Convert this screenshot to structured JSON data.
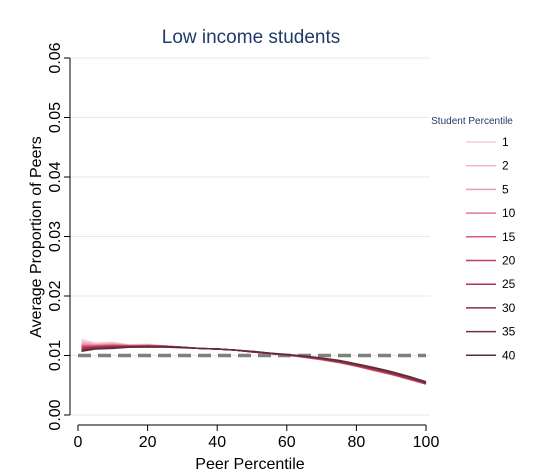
{
  "chart_data": {
    "type": "line",
    "title": "Low income students",
    "xlabel": "Peer Percentile",
    "ylabel": "Average Proportion of Peers",
    "xlim": [
      0,
      100
    ],
    "ylim": [
      0,
      0.06
    ],
    "x_ticks": [
      "0",
      "20",
      "40",
      "60",
      "80",
      "100"
    ],
    "y_ticks": [
      "0.00",
      "0.01",
      "0.02",
      "0.03",
      "0.04",
      "0.05",
      "0.06"
    ],
    "grid": true,
    "legend_title": "Student Percentile",
    "legend_position": "right",
    "reference_line": {
      "y": 0.01,
      "style": "dashed",
      "color": "#7f7f7f"
    },
    "x": [
      1,
      5,
      10,
      15,
      20,
      25,
      30,
      35,
      40,
      45,
      50,
      55,
      60,
      65,
      70,
      75,
      80,
      85,
      90,
      95,
      100
    ],
    "series": [
      {
        "name": "1",
        "color": "#f5cfd6",
        "values": [
          0.0127,
          0.0121,
          0.0122,
          0.0118,
          0.0119,
          0.0116,
          0.0114,
          0.0112,
          0.0111,
          0.0109,
          0.0106,
          0.0103,
          0.0101,
          0.0097,
          0.0093,
          0.0089,
          0.0083,
          0.0077,
          0.0071,
          0.0064,
          0.0056
        ]
      },
      {
        "name": "2",
        "color": "#f1b8c5",
        "values": [
          0.0124,
          0.0119,
          0.0121,
          0.0117,
          0.0118,
          0.0116,
          0.0114,
          0.0112,
          0.0111,
          0.0109,
          0.0106,
          0.0103,
          0.0101,
          0.0097,
          0.0093,
          0.0089,
          0.0083,
          0.0076,
          0.007,
          0.0063,
          0.0055
        ]
      },
      {
        "name": "5",
        "color": "#ec9db1",
        "values": [
          0.0121,
          0.0118,
          0.0119,
          0.0117,
          0.0117,
          0.0116,
          0.0114,
          0.0112,
          0.0111,
          0.0109,
          0.0106,
          0.0103,
          0.0101,
          0.0097,
          0.0093,
          0.0088,
          0.0083,
          0.0076,
          0.0069,
          0.0062,
          0.0054
        ]
      },
      {
        "name": "10",
        "color": "#e07a93",
        "values": [
          0.0118,
          0.0117,
          0.0118,
          0.0117,
          0.0117,
          0.0116,
          0.0114,
          0.0112,
          0.0111,
          0.0109,
          0.0106,
          0.0103,
          0.0101,
          0.0097,
          0.0093,
          0.0088,
          0.0082,
          0.0075,
          0.0068,
          0.0061,
          0.0053
        ]
      },
      {
        "name": "15",
        "color": "#d55a78",
        "values": [
          0.0116,
          0.0116,
          0.0117,
          0.0116,
          0.0117,
          0.0116,
          0.0114,
          0.0112,
          0.0111,
          0.0109,
          0.0106,
          0.0103,
          0.0101,
          0.0097,
          0.0093,
          0.0088,
          0.0082,
          0.0075,
          0.0068,
          0.006,
          0.0052
        ]
      },
      {
        "name": "20",
        "color": "#c43d5f",
        "values": [
          0.0114,
          0.0115,
          0.0116,
          0.0116,
          0.0116,
          0.0115,
          0.0114,
          0.0112,
          0.0111,
          0.0109,
          0.0106,
          0.0103,
          0.0101,
          0.0098,
          0.0094,
          0.0089,
          0.0083,
          0.0076,
          0.0069,
          0.0061,
          0.0052
        ]
      },
      {
        "name": "25",
        "color": "#a8324f",
        "values": [
          0.0112,
          0.0114,
          0.0115,
          0.0115,
          0.0116,
          0.0115,
          0.0114,
          0.0112,
          0.0111,
          0.0109,
          0.0106,
          0.0103,
          0.0101,
          0.0098,
          0.0094,
          0.0089,
          0.0083,
          0.0077,
          0.007,
          0.0062,
          0.0053
        ]
      },
      {
        "name": "30",
        "color": "#8c2e45",
        "values": [
          0.011,
          0.0113,
          0.0114,
          0.0115,
          0.0115,
          0.0115,
          0.0114,
          0.0112,
          0.0111,
          0.0109,
          0.0106,
          0.0104,
          0.0101,
          0.0098,
          0.0095,
          0.009,
          0.0084,
          0.0078,
          0.0071,
          0.0063,
          0.0054
        ]
      },
      {
        "name": "35",
        "color": "#73323f",
        "values": [
          0.0108,
          0.0112,
          0.0113,
          0.0114,
          0.0115,
          0.0115,
          0.0114,
          0.0112,
          0.0111,
          0.0109,
          0.0107,
          0.0104,
          0.0101,
          0.0099,
          0.0095,
          0.0091,
          0.0085,
          0.0079,
          0.0072,
          0.0064,
          0.0055
        ]
      },
      {
        "name": "40",
        "color": "#5a2e36",
        "values": [
          0.0107,
          0.0111,
          0.0112,
          0.0114,
          0.0114,
          0.0114,
          0.0113,
          0.0112,
          0.0111,
          0.0109,
          0.0107,
          0.0104,
          0.0102,
          0.0099,
          0.0096,
          0.0092,
          0.0086,
          0.008,
          0.0073,
          0.0065,
          0.0056
        ]
      }
    ]
  }
}
